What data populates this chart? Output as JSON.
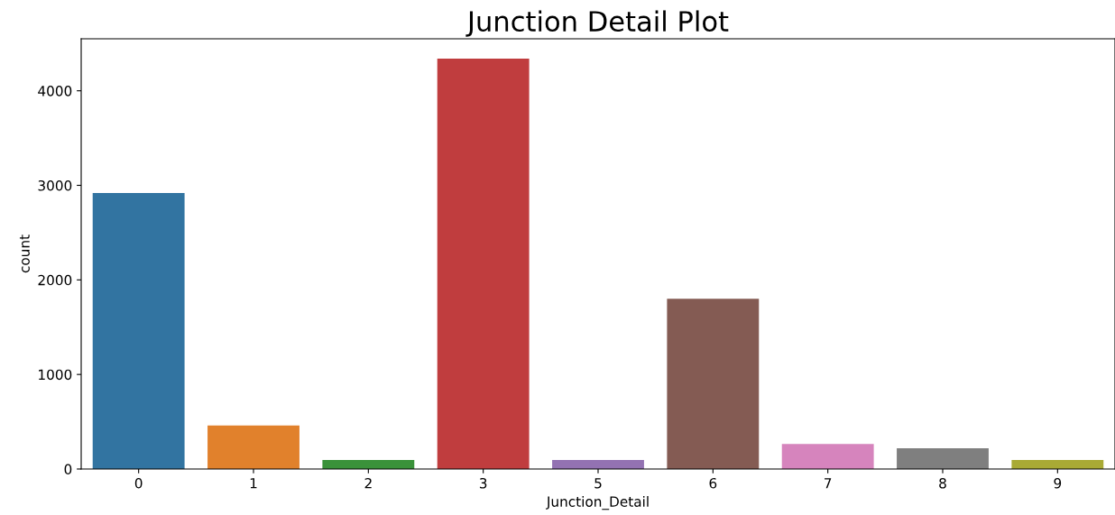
{
  "chart_data": {
    "type": "bar",
    "title": "Junction Detail Plot",
    "xlabel": "Junction_Detail",
    "ylabel": "count",
    "categories": [
      "0",
      "1",
      "2",
      "3",
      "5",
      "6",
      "7",
      "8",
      "9"
    ],
    "values": [
      2920,
      460,
      95,
      4340,
      95,
      1800,
      265,
      220,
      95
    ],
    "colors": [
      "#3274a1",
      "#e1812c",
      "#3a923a",
      "#c03d3e",
      "#9372b2",
      "#845b53",
      "#d684bd",
      "#7f7f7f",
      "#a9aa35"
    ],
    "ylim": [
      0,
      4550
    ],
    "yticks": [
      0,
      1000,
      2000,
      3000,
      4000
    ],
    "grid": false
  }
}
